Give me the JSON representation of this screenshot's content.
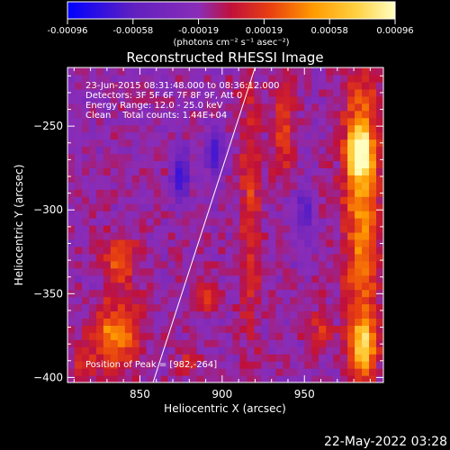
{
  "colorbar": {
    "ticks": [
      "-0.00096",
      "-0.00058",
      "-0.00019",
      "0.00019",
      "0.00058",
      "0.00096"
    ],
    "units_label": "(photons cm⁻² s⁻¹ asec⁻²)",
    "colors": [
      "#0000ff",
      "#6020c0",
      "#8a2db8",
      "#c0103a",
      "#e84010",
      "#ff9a00",
      "#ffd040",
      "#ffffc0"
    ]
  },
  "title": "Reconstructed RHESSI Image",
  "info": {
    "line1": "23-Jun-2015 08:31:48.000 to 08:36:12.000",
    "line2": "Detectors: 3F 5F 6F 7F 8F 9F, Att 0",
    "line3": "Energy Range: 12.0 - 25.0 keV",
    "line4": "Clean    Total counts: 1.44E+04"
  },
  "peak_label": "Position of Peak = [982,-264]",
  "timestamp": "22-May-2022 03:28",
  "chart_data": {
    "type": "heatmap",
    "title": "Reconstructed RHESSI Image",
    "xlabel": "Heliocentric X (arcsec)",
    "ylabel": "Heliocentric Y (arcsec)",
    "xlim": [
      806,
      998
    ],
    "ylim": [
      -403,
      -215
    ],
    "xticks": [
      850,
      900,
      950
    ],
    "yticks": [
      -250,
      -300,
      -350,
      -400
    ],
    "color_range": [
      -0.00096,
      0.00096
    ],
    "peak": [
      982,
      -264
    ],
    "limb_line": [
      [
        858,
        -403
      ],
      [
        920,
        -215
      ]
    ],
    "features": [
      {
        "label": "strip",
        "x": 985,
        "y": -295,
        "w": 22,
        "h": 185,
        "level": 0.62
      },
      {
        "label": "hot",
        "x": 983,
        "y": -265,
        "w": 14,
        "h": 30,
        "level": 0.95
      },
      {
        "label": "hot",
        "x": 986,
        "y": -380,
        "w": 14,
        "h": 35,
        "level": 0.75
      },
      {
        "label": "strip",
        "x": 917,
        "y": -300,
        "w": 13,
        "h": 175,
        "level": 0.32
      },
      {
        "label": "strip",
        "x": 937,
        "y": -250,
        "w": 14,
        "h": 60,
        "level": 0.38
      },
      {
        "label": "hot",
        "x": 835,
        "y": -375,
        "w": 28,
        "h": 40,
        "level": 0.65
      },
      {
        "label": "hot",
        "x": 838,
        "y": -330,
        "w": 22,
        "h": 30,
        "level": 0.45
      },
      {
        "label": "hot",
        "x": 815,
        "y": -390,
        "w": 14,
        "h": 18,
        "level": 0.3
      },
      {
        "label": "hot",
        "x": 890,
        "y": -350,
        "w": 14,
        "h": 22,
        "level": 0.35
      },
      {
        "label": "hot",
        "x": 880,
        "y": -390,
        "w": 12,
        "h": 20,
        "level": 0.28
      },
      {
        "label": "hot",
        "x": 960,
        "y": -370,
        "w": 14,
        "h": 30,
        "level": 0.3
      },
      {
        "label": "cold",
        "x": 875,
        "y": -280,
        "w": 10,
        "h": 30,
        "level": -0.6
      },
      {
        "label": "cold",
        "x": 895,
        "y": -265,
        "w": 12,
        "h": 30,
        "level": -0.45
      },
      {
        "label": "cold",
        "x": 950,
        "y": -300,
        "w": 10,
        "h": 40,
        "level": -0.4
      }
    ]
  }
}
